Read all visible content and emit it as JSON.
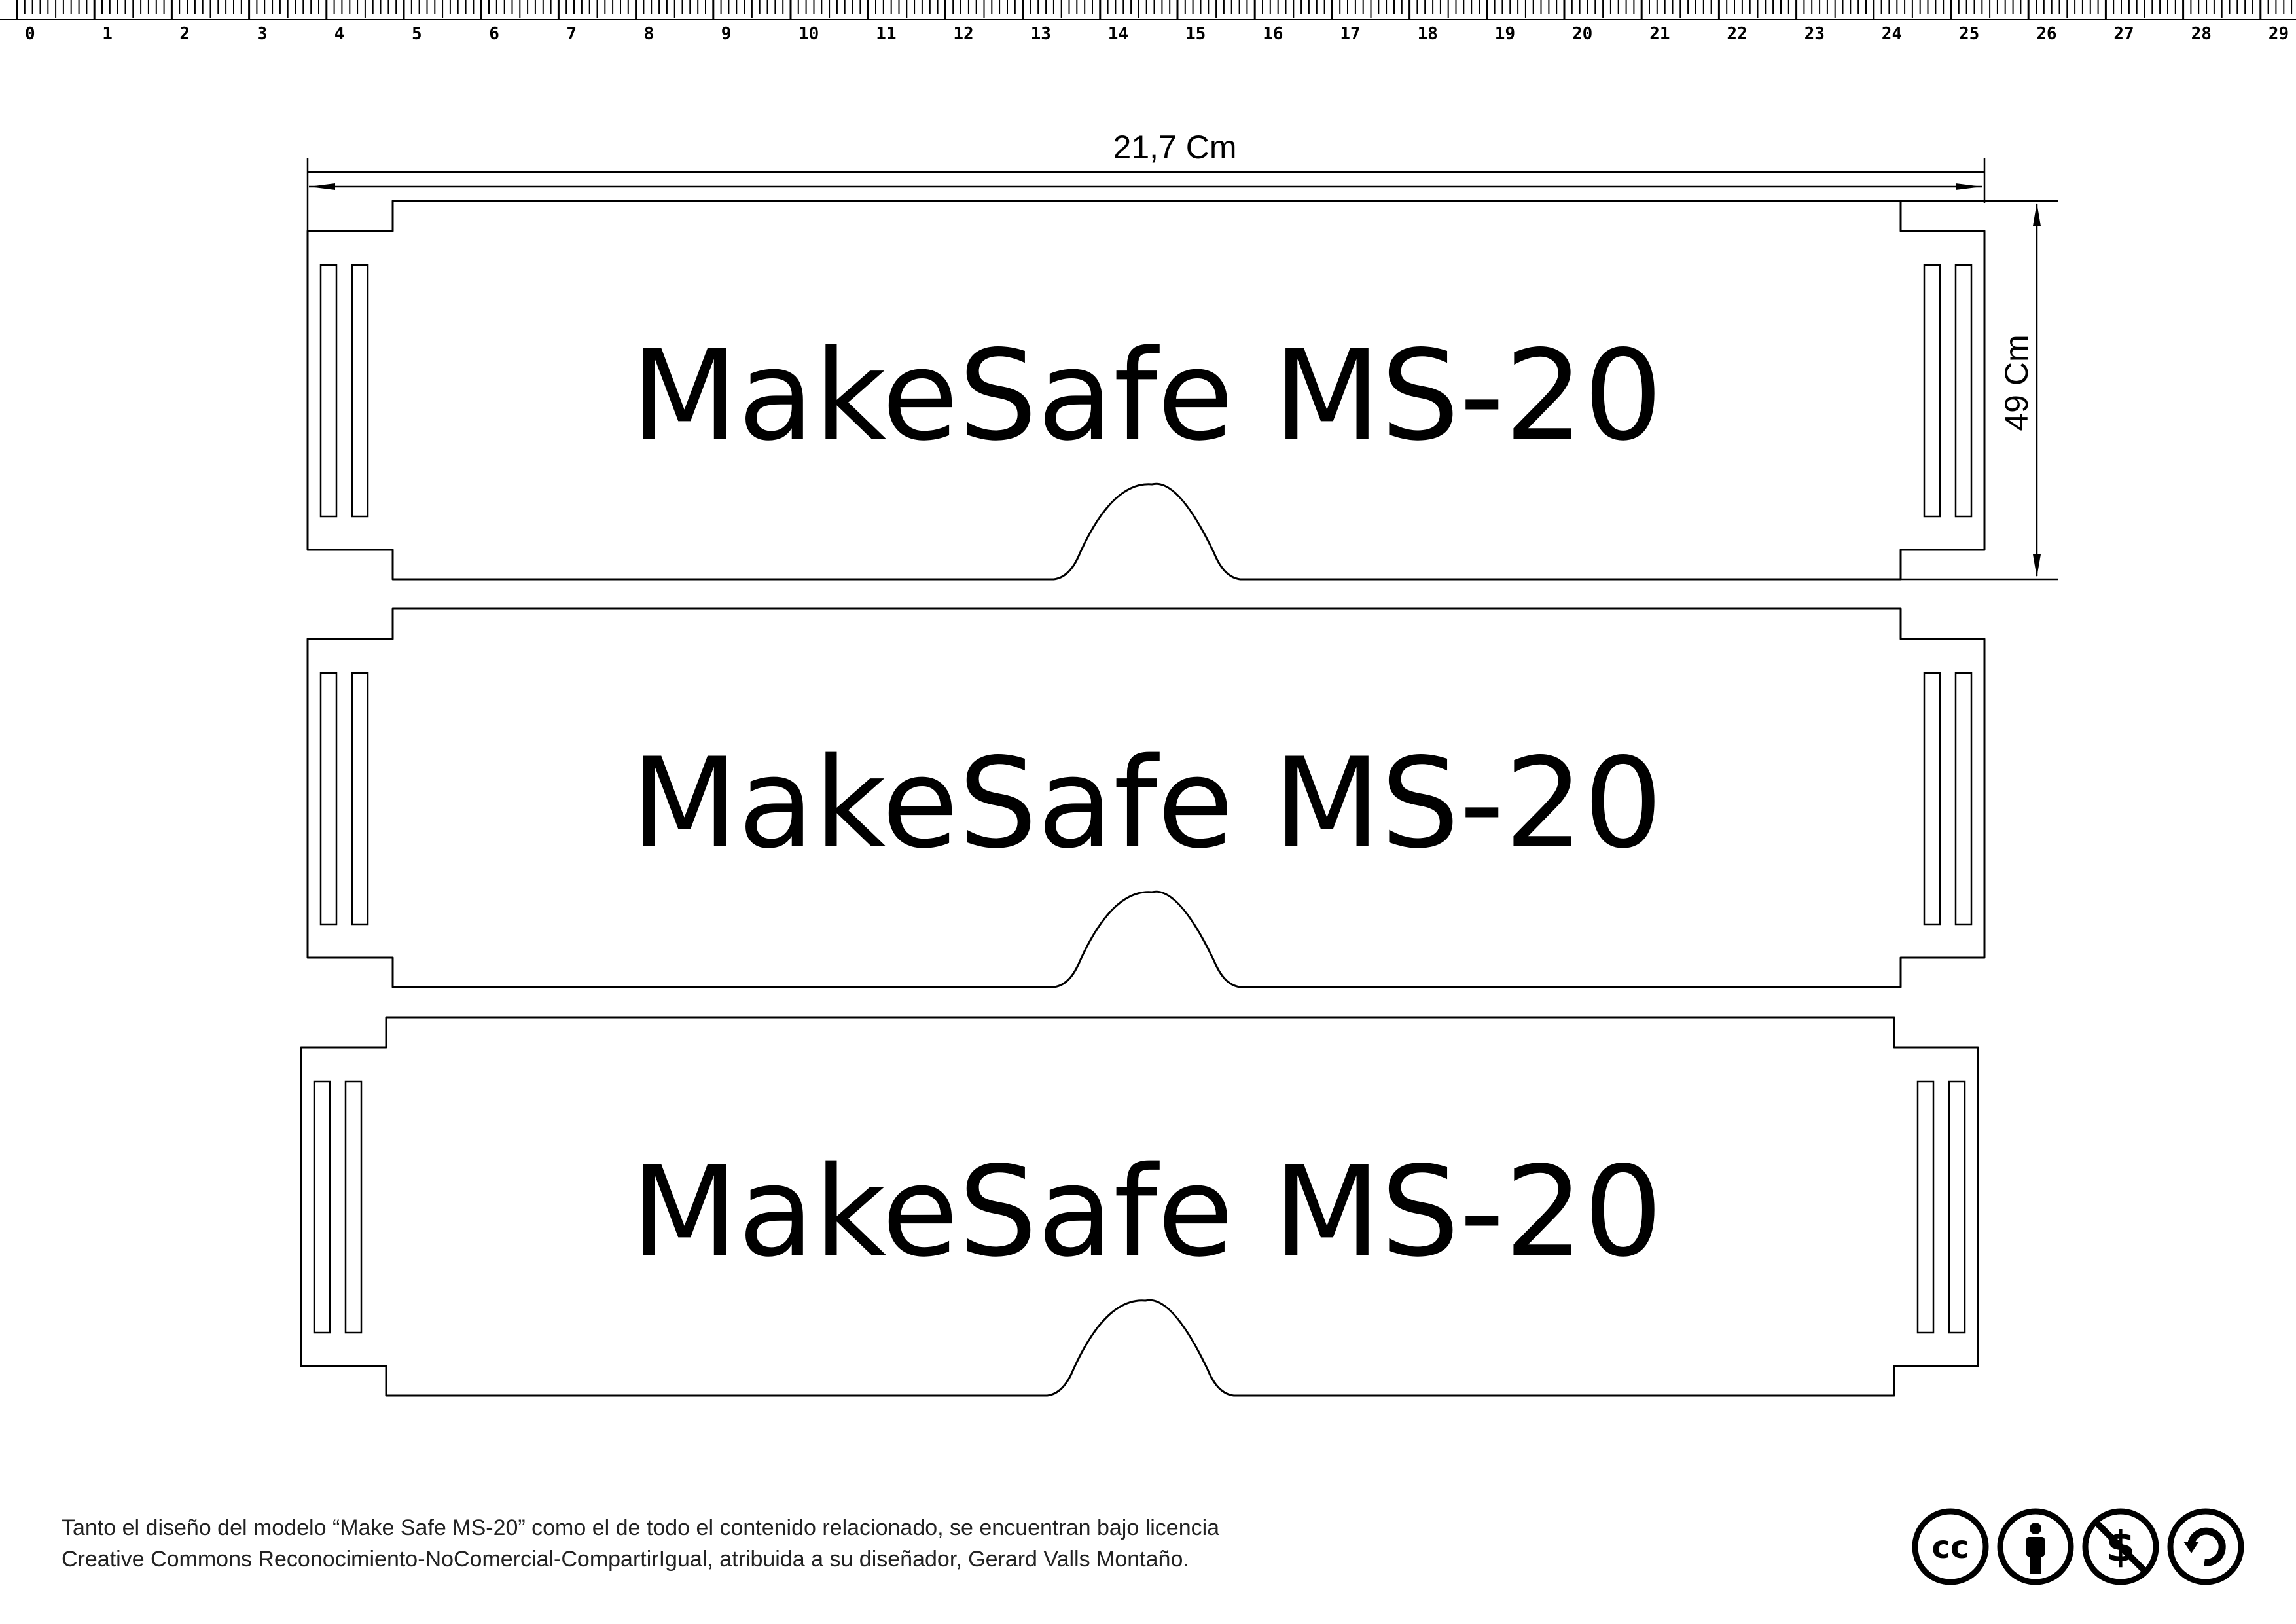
{
  "ruler": {
    "unit": "cm",
    "labels": [
      "0",
      "1",
      "2",
      "3",
      "4",
      "5",
      "6",
      "7",
      "8",
      "9",
      "10",
      "11",
      "12",
      "13",
      "14",
      "15",
      "16",
      "17",
      "18",
      "19",
      "20",
      "21",
      "22",
      "23",
      "24",
      "25",
      "26",
      "27",
      "28",
      "29"
    ]
  },
  "dimensions": {
    "width_label": "21,7 Cm",
    "height_label": "49 Cm"
  },
  "templates": [
    {
      "label": "MakeSafe MS-20"
    },
    {
      "label": "MakeSafe MS-20"
    },
    {
      "label": "MakeSafe MS-20"
    }
  ],
  "license": {
    "line1": "Tanto el diseño del modelo “Make Safe MS-20” como el de todo el contenido relacionado, se encuentran bajo licencia",
    "line2": "Creative Commons Reconocimiento-NoComercial-CompartirIgual, atribuida a su diseñador, Gerard Valls Montaño."
  },
  "cc_icons": {
    "cc": "cc",
    "by": "person-icon",
    "nc": "no-dollar-icon",
    "sa": "share-alike-icon"
  },
  "colors": {
    "ink": "#000000",
    "paper": "#ffffff"
  }
}
